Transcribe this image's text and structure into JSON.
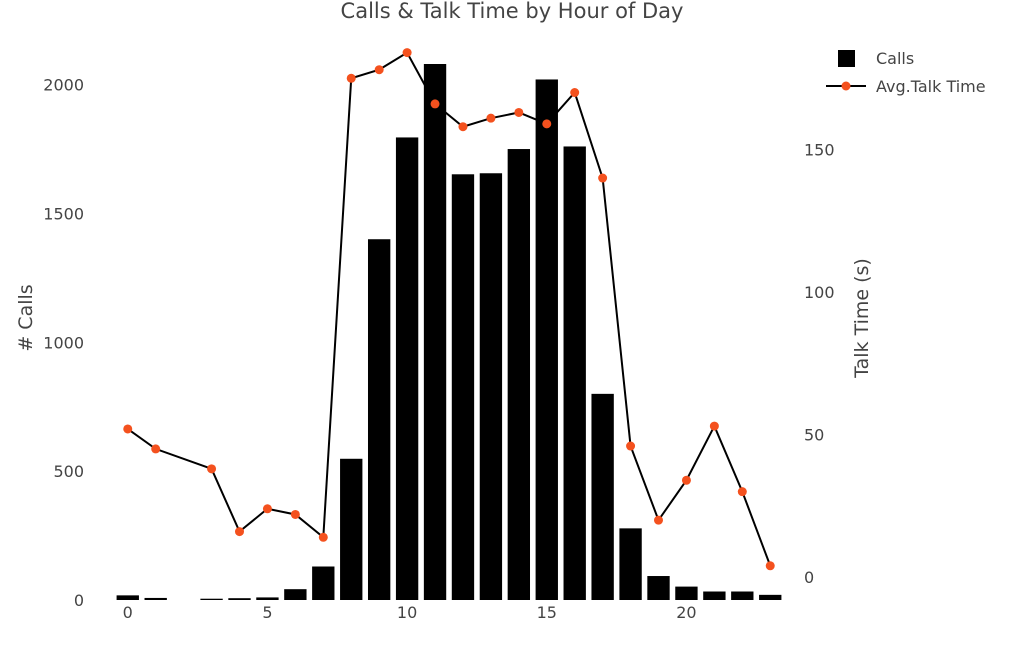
{
  "chart_data": {
    "type": "bar",
    "title": "Calls & Talk Time by Hour of Day",
    "xlabel": "",
    "ylabel": "# Calls",
    "y2label": "Talk Time (s)",
    "x": [
      0,
      1,
      2,
      3,
      4,
      5,
      6,
      7,
      8,
      9,
      10,
      11,
      12,
      13,
      14,
      15,
      16,
      17,
      18,
      19,
      20,
      21,
      22,
      23
    ],
    "xticks": [
      0,
      5,
      10,
      15,
      20
    ],
    "xlim": [
      -0.6,
      23.6
    ],
    "ylim": [
      0,
      2080
    ],
    "yticks": [
      0,
      500,
      1000,
      1500,
      2000
    ],
    "y2lim": [
      -8,
      180
    ],
    "y2ticks": [
      0,
      50,
      100,
      150
    ],
    "grid": false,
    "legend_position": "top-right",
    "series": [
      {
        "name": "Calls",
        "type": "bar",
        "axis": "left",
        "color": "#000000",
        "values": [
          18,
          8,
          0,
          5,
          7,
          10,
          42,
          130,
          548,
          1400,
          1795,
          2080,
          1652,
          1656,
          1750,
          2020,
          1760,
          800,
          278,
          93,
          52,
          33,
          33,
          20
        ]
      },
      {
        "name": "Avg.Talk Time",
        "type": "line",
        "axis": "right",
        "color": "#000000",
        "marker_color": "#f4511e",
        "x": [
          0,
          1,
          3,
          4,
          5,
          6,
          7,
          8,
          9,
          10,
          11,
          12,
          13,
          14,
          15,
          16,
          17,
          18,
          19,
          20,
          21,
          22,
          23
        ],
        "values": [
          52,
          45,
          38,
          16,
          24,
          22,
          14,
          175,
          178,
          184,
          166,
          158,
          161,
          163,
          159,
          170,
          140,
          46,
          20,
          34,
          53,
          30,
          4
        ]
      }
    ]
  }
}
